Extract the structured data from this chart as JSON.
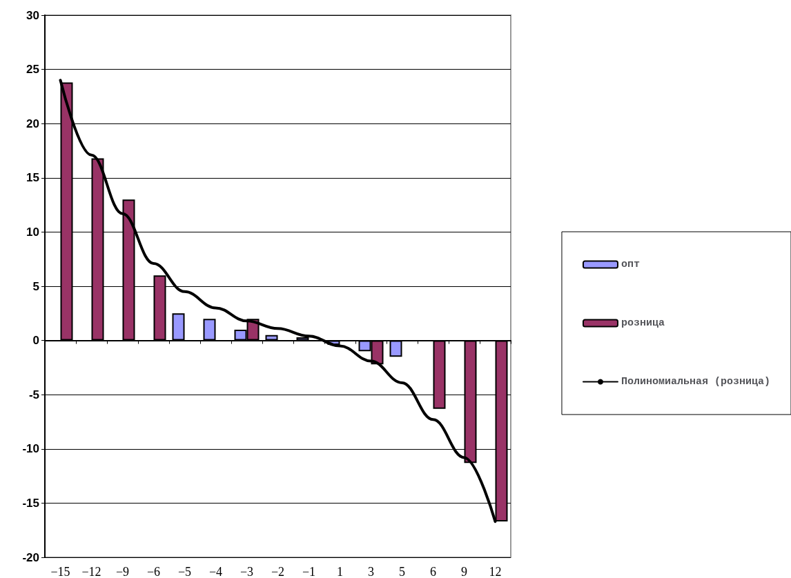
{
  "chart_data": {
    "type": "bar",
    "categories": [
      "−15",
      "−12",
      "−9",
      "−6",
      "−5",
      "−4",
      "−3",
      "−2",
      "−1",
      "1",
      "3",
      "5",
      "6",
      "9",
      "12"
    ],
    "series": [
      {
        "name": "опт",
        "color": "#9999ff",
        "values": [
          null,
          null,
          null,
          null,
          2.5,
          2.0,
          1.0,
          0.5,
          0.3,
          -0.4,
          -1.0,
          -1.5,
          null,
          null,
          null
        ]
      },
      {
        "name": "розница",
        "color": "#993366",
        "values": [
          23.8,
          16.8,
          13.0,
          6.0,
          null,
          null,
          2.0,
          null,
          null,
          null,
          -2.2,
          null,
          -6.3,
          -11.3,
          -16.7
        ]
      },
      {
        "name": "Полиномиальная (розница)",
        "type": "line",
        "color": "#000000",
        "marker": "none",
        "x": [
          "−15",
          "−12",
          "−9",
          "−6",
          "−5",
          "−4",
          "−3",
          "−2",
          "−1",
          "1",
          "3",
          "5",
          "6",
          "9",
          "12"
        ],
        "values": [
          24.0,
          17.1,
          11.7,
          7.1,
          4.5,
          3.0,
          1.8,
          1.1,
          0.4,
          -0.5,
          -1.9,
          -3.9,
          -7.3,
          -10.8,
          -16.7
        ]
      }
    ],
    "ylim": [
      -20,
      30
    ],
    "yticks": [
      -20,
      -15,
      -10,
      -5,
      0,
      5,
      10,
      15,
      20,
      25,
      30
    ],
    "grid": "y",
    "legend": "right"
  }
}
